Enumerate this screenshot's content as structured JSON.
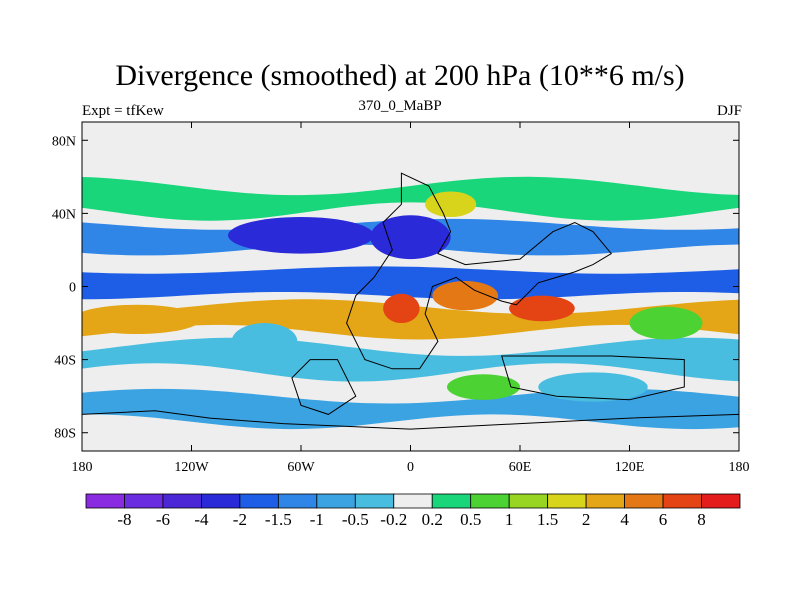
{
  "title": "Divergence (smoothed) at 200 hPa (10**6 m/s)",
  "subtitle_left": "Expt = tfKew",
  "subtitle_center": "370_0_MaBP",
  "subtitle_right": "DJF",
  "x_ticks": [
    {
      "lon": -180,
      "label": "180"
    },
    {
      "lon": -120,
      "label": "120W"
    },
    {
      "lon": -60,
      "label": "60W"
    },
    {
      "lon": 0,
      "label": "0"
    },
    {
      "lon": 60,
      "label": "60E"
    },
    {
      "lon": 120,
      "label": "120E"
    },
    {
      "lon": 180,
      "label": "180"
    }
  ],
  "y_ticks": [
    {
      "lat": 80,
      "label": "80N"
    },
    {
      "lat": 40,
      "label": "40N"
    },
    {
      "lat": 0,
      "label": "0"
    },
    {
      "lat": -40,
      "label": "40S"
    },
    {
      "lat": -80,
      "label": "80S"
    }
  ],
  "colorbar": {
    "colors": [
      "#8a2be2",
      "#6a2de0",
      "#4b27d6",
      "#2a2ad8",
      "#1e5ee6",
      "#2f86e6",
      "#3ca3e3",
      "#48bde0",
      "#eeeeee",
      "#19d67b",
      "#4cd233",
      "#98d523",
      "#d8d41c",
      "#e4a616",
      "#e47815",
      "#e44413",
      "#e41c1c"
    ],
    "labels": [
      "-8",
      "-6",
      "-4",
      "-2",
      "-1.5",
      "-1",
      "-0.5",
      "-0.2",
      "0.2",
      "0.5",
      "1",
      "1.5",
      "2",
      "4",
      "6",
      "8"
    ]
  },
  "field": {
    "background": "#eeeeee",
    "bands": [
      {
        "color": "#19d67b",
        "lat_center": 48,
        "amp": 5
      },
      {
        "color": "#2f86e6",
        "lat_center": 27,
        "amp": 3
      },
      {
        "color": "#1e5ee6",
        "lat_center": 2,
        "amp": 2
      },
      {
        "color": "#e4a616",
        "lat_center": -18,
        "amp": 4
      },
      {
        "color": "#48bde0",
        "lat_center": -40,
        "amp": 5
      },
      {
        "color": "#3ca3e3",
        "lat_center": -67,
        "amp": 4
      }
    ],
    "blobs": [
      {
        "lon": -60,
        "lat": 28,
        "rlon": 40,
        "rlat": 10,
        "color": "#2a2ad8"
      },
      {
        "lon": 0,
        "lat": 27,
        "rlon": 22,
        "rlat": 12,
        "color": "#2a2ad8"
      },
      {
        "lon": -5,
        "lat": -12,
        "rlon": 10,
        "rlat": 8,
        "color": "#e44413"
      },
      {
        "lon": 72,
        "lat": -12,
        "rlon": 18,
        "rlat": 7,
        "color": "#e44413"
      },
      {
        "lon": 30,
        "lat": -5,
        "rlon": 18,
        "rlat": 8,
        "color": "#e47815"
      },
      {
        "lon": -150,
        "lat": -18,
        "rlon": 35,
        "rlat": 8,
        "color": "#e4a616"
      },
      {
        "lon": 22,
        "lat": 45,
        "rlon": 14,
        "rlat": 7,
        "color": "#d8d41c"
      },
      {
        "lon": 140,
        "lat": -20,
        "rlon": 20,
        "rlat": 9,
        "color": "#4cd233"
      },
      {
        "lon": -80,
        "lat": -30,
        "rlon": 18,
        "rlat": 10,
        "color": "#48bde0"
      },
      {
        "lon": 100,
        "lat": -55,
        "rlon": 30,
        "rlat": 8,
        "color": "#48bde0"
      },
      {
        "lon": 40,
        "lat": -55,
        "rlon": 20,
        "rlat": 7,
        "color": "#4cd233"
      }
    ]
  },
  "colors": {
    "axis": "#000000",
    "continent_outline": "#000000"
  }
}
